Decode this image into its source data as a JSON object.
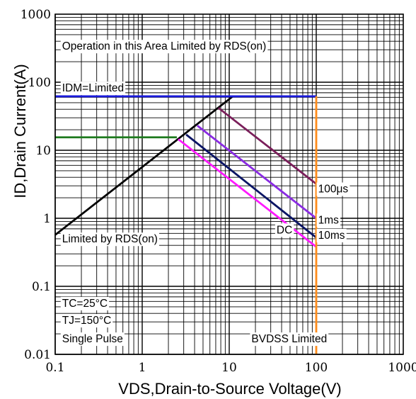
{
  "chart_data": {
    "type": "line",
    "title": "",
    "xlabel": "VDS,Drain-to-Source Voltage(V)",
    "ylabel": "ID,Drain Current(A)",
    "x_scale": "log",
    "y_scale": "log",
    "xlim": [
      0.1,
      1000
    ],
    "ylim": [
      0.01,
      1000
    ],
    "grid": true,
    "x_ticks": [
      "0.1",
      "1",
      "10",
      "100",
      "1000"
    ],
    "y_ticks": [
      "0.01",
      "0.1",
      "1",
      "10",
      "100",
      "1000"
    ],
    "series": [
      {
        "key": "rds",
        "color": "#000000",
        "x": [
          0.1,
          11
        ],
        "y": [
          0.57,
          62
        ]
      },
      {
        "key": "idm",
        "color": "#1a1adc",
        "x": [
          0.1,
          100
        ],
        "y": [
          62,
          62
        ]
      },
      {
        "key": "pre",
        "color": "#1e7a1e",
        "x": [
          0.1,
          2.5
        ],
        "y": [
          15.5,
          15.5
        ]
      },
      {
        "key": "us100",
        "color": "#7a1e5a",
        "x": [
          7.5,
          100
        ],
        "y": [
          42,
          3.2
        ]
      },
      {
        "key": "ms1",
        "color": "#8a2be2",
        "x": [
          4.3,
          100
        ],
        "y": [
          23,
          1
        ]
      },
      {
        "key": "dc",
        "color": "#0a1464",
        "x": [
          3.2,
          100
        ],
        "y": [
          17,
          0.52
        ]
      },
      {
        "key": "ms10",
        "color": "#ff19ff",
        "x": [
          2.6,
          100
        ],
        "y": [
          14.5,
          0.38
        ]
      },
      {
        "key": "bvdss",
        "color": "#ff8c1a",
        "x": [
          100,
          100
        ],
        "y": [
          0.01,
          62
        ]
      }
    ],
    "annotations": [
      {
        "key": "rds_area",
        "text": "Operation in this Area Limited by RDS(on)",
        "x": 0.12,
        "y": 300
      },
      {
        "key": "idm_lim",
        "text": "IDM=Limited",
        "x": 0.12,
        "y": 73
      },
      {
        "key": "us100",
        "text": "100μs",
        "x": 105,
        "y": 2.4
      },
      {
        "key": "ms1",
        "text": "1ms",
        "x": 105,
        "y": 0.84
      },
      {
        "key": "dc",
        "text": "DC",
        "x": 35,
        "y": 0.6
      },
      {
        "key": "ms10",
        "text": "10ms",
        "x": 105,
        "y": 0.5
      },
      {
        "key": "rds_lim",
        "text": "Limited by RDS(on)",
        "x": 0.12,
        "y": 0.44
      },
      {
        "key": "tc",
        "text": "TC=25°C",
        "x": 0.12,
        "y": 0.05
      },
      {
        "key": "tj",
        "text": "TJ=150°C",
        "x": 0.12,
        "y": 0.028
      },
      {
        "key": "pulse",
        "text": "Single Pulse",
        "x": 0.12,
        "y": 0.015
      },
      {
        "key": "bvdss",
        "text": "BVDSS Limited",
        "x": 18,
        "y": 0.015
      }
    ]
  }
}
